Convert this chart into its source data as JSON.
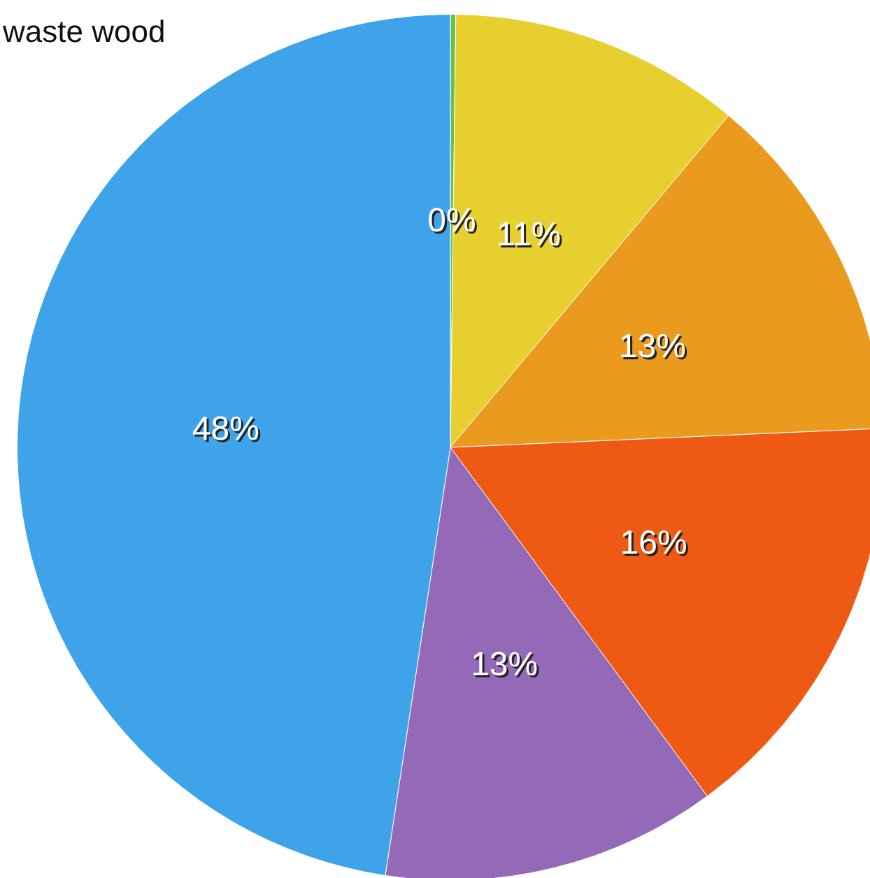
{
  "chart_data": {
    "type": "pie",
    "categories": [
      null,
      null,
      null,
      null,
      null,
      null
    ],
    "values": [
      0.2,
      10.9,
      13.2,
      15.6,
      12.5,
      47.6
    ],
    "colors": [
      "#6abf4b",
      "#e8cf30",
      "#ea9a1c",
      "#ee5a14",
      "#9369b8",
      "#3fa3ea"
    ],
    "value_labels": [
      "0%",
      "11%",
      "13%",
      "16%",
      "13%",
      "48%"
    ],
    "annotations": [
      "waste wood"
    ]
  }
}
